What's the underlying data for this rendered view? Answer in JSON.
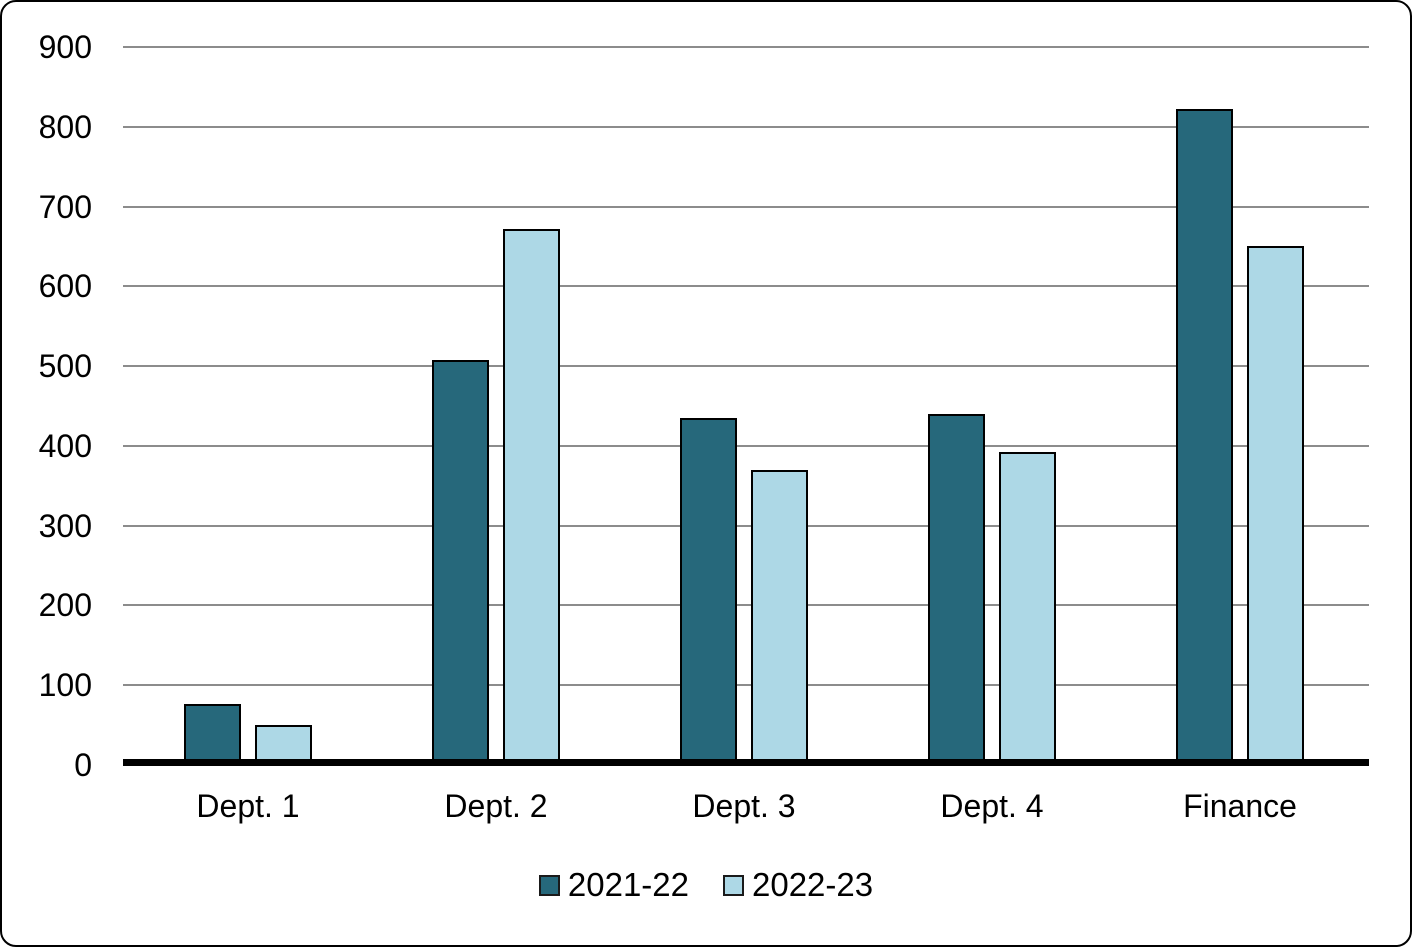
{
  "chart_data": {
    "type": "bar",
    "title": "",
    "xlabel": "",
    "ylabel": "",
    "categories": [
      "Dept. 1",
      "Dept. 2",
      "Dept. 3",
      "Dept. 4",
      "Finance"
    ],
    "series": [
      {
        "name": "2021-22",
        "color": "#26687B",
        "values": [
          77,
          508,
          435,
          440,
          822
        ]
      },
      {
        "name": "2022-23",
        "color": "#ADD8E6",
        "values": [
          50,
          672,
          370,
          392,
          650
        ]
      }
    ],
    "ylim": [
      0,
      900
    ],
    "yticks": [
      900,
      800,
      700,
      600,
      500,
      400,
      300,
      200,
      100,
      0
    ],
    "ytick_labels": [
      "900",
      "800",
      "700",
      "600",
      "500",
      "400",
      "300",
      "200",
      "100",
      "0"
    ],
    "grid": true,
    "legend_position": "bottom",
    "gridline_color": "#8c8c8c",
    "axis_color": "#000000"
  }
}
